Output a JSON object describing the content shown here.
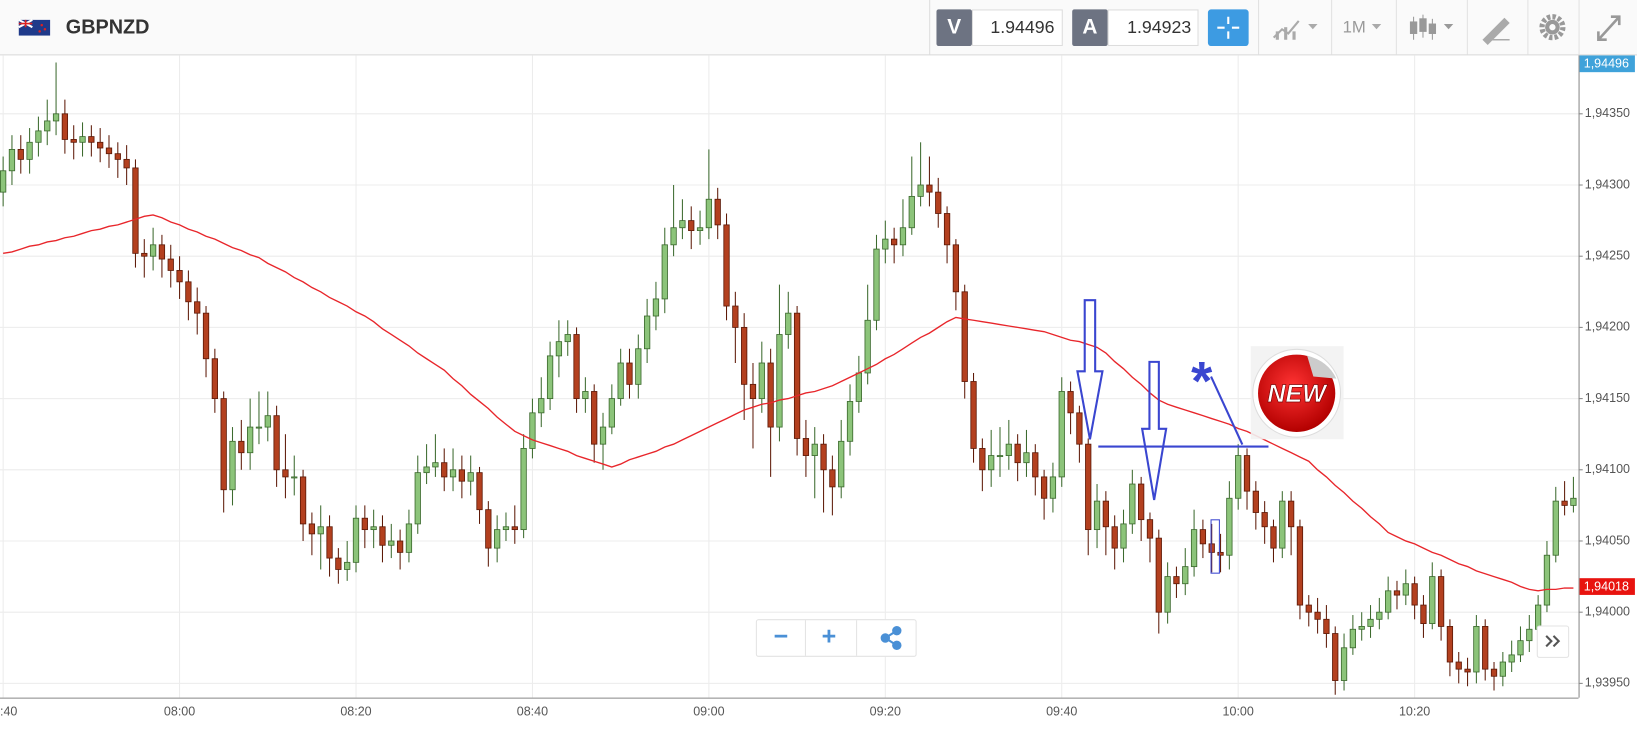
{
  "toolbar": {
    "symbol": "GBPNZD",
    "sell_label": "V",
    "sell_price": "1.94496",
    "buy_label": "A",
    "buy_price": "1.94923",
    "timeframe": "1M"
  },
  "controls": {
    "zoom_out": "−",
    "zoom_in": "+"
  },
  "annotations": {
    "sticker": "NEW",
    "asterisk": "*"
  },
  "chart_data": {
    "type": "candlestick",
    "up_color": "#8cc47a",
    "down_color": "#b3401f",
    "grid": true,
    "ylim": [
      1.9394,
      1.94391
    ],
    "yticks": [
      {
        "value": 1.9395,
        "label": "1,93950"
      },
      {
        "value": 1.94,
        "label": "1,94000"
      },
      {
        "value": 1.9405,
        "label": "1,94050"
      },
      {
        "value": 1.941,
        "label": "1,94100"
      },
      {
        "value": 1.9415,
        "label": "1,94150"
      },
      {
        "value": 1.942,
        "label": "1,94200"
      },
      {
        "value": 1.9425,
        "label": "1,94250"
      },
      {
        "value": 1.943,
        "label": "1,94300"
      },
      {
        "value": 1.9435,
        "label": "1,94350"
      }
    ],
    "price_tags": [
      {
        "value": 1.94496,
        "label": "1,94496",
        "color": "#3fa2da"
      },
      {
        "value": 1.94018,
        "label": "1,94018",
        "color": "#e8130f"
      }
    ],
    "categories": [
      ":40",
      null,
      null,
      null,
      null,
      null,
      null,
      null,
      null,
      null,
      null,
      null,
      null,
      null,
      null,
      null,
      null,
      null,
      null,
      null,
      "08:00",
      null,
      null,
      null,
      null,
      null,
      null,
      null,
      null,
      null,
      null,
      null,
      null,
      null,
      null,
      null,
      null,
      null,
      null,
      null,
      "08:20",
      null,
      null,
      null,
      null,
      null,
      null,
      null,
      null,
      null,
      null,
      null,
      null,
      null,
      null,
      null,
      null,
      null,
      null,
      null,
      "08:40",
      null,
      null,
      null,
      null,
      null,
      null,
      null,
      null,
      null,
      null,
      null,
      null,
      null,
      null,
      null,
      null,
      null,
      null,
      null,
      "09:00",
      null,
      null,
      null,
      null,
      null,
      null,
      null,
      null,
      null,
      null,
      null,
      null,
      null,
      null,
      null,
      null,
      null,
      null,
      null,
      "09:20",
      null,
      null,
      null,
      null,
      null,
      null,
      null,
      null,
      null,
      null,
      null,
      null,
      null,
      null,
      null,
      null,
      null,
      null,
      null,
      "09:40",
      null,
      null,
      null,
      null,
      null,
      null,
      null,
      null,
      null,
      null,
      null,
      null,
      null,
      null,
      null,
      null,
      null,
      null,
      null,
      "10:00",
      null,
      null,
      null,
      null,
      null,
      null,
      null,
      null,
      null,
      null,
      null,
      null,
      null,
      null,
      null,
      null,
      null,
      null,
      null,
      "10:20",
      null,
      null,
      null,
      null,
      null,
      null,
      null,
      null,
      null,
      null,
      null,
      null,
      null,
      null,
      null,
      null,
      null,
      null
    ],
    "open": [
      1.94295,
      1.9431,
      1.94325,
      1.94318,
      1.9433,
      1.94338,
      1.94345,
      1.9435,
      1.94332,
      1.9433,
      1.94334,
      1.9433,
      1.94326,
      1.94322,
      1.94318,
      1.94312,
      1.94252,
      1.9425,
      1.94258,
      1.94248,
      1.9424,
      1.94232,
      1.94218,
      1.9421,
      1.94178,
      1.9415,
      1.94086,
      1.9412,
      1.94112,
      1.9413,
      1.9413,
      1.94138,
      1.941,
      1.94095,
      1.94095,
      1.94062,
      1.94055,
      1.9406,
      1.94038,
      1.9403,
      1.94035,
      1.94066,
      1.94058,
      1.9406,
      1.94047,
      1.9405,
      1.94042,
      1.94062,
      1.94098,
      1.94102,
      1.94105,
      1.94095,
      1.941,
      1.94092,
      1.94098,
      1.94072,
      1.94045,
      1.94058,
      1.9406,
      1.94058,
      1.94115,
      1.9414,
      1.9415,
      1.9418,
      1.9419,
      1.94195,
      1.9415,
      1.94155,
      1.94118,
      1.9413,
      1.9415,
      1.94175,
      1.9416,
      1.94185,
      1.94208,
      1.9422,
      1.94258,
      1.9427,
      1.94275,
      1.94268,
      1.9427,
      1.9429,
      1.94272,
      1.94215,
      1.942,
      1.9416,
      1.9415,
      1.94175,
      1.9413,
      1.94195,
      1.9421,
      1.94122,
      1.9411,
      1.94118,
      1.941,
      1.94088,
      1.9412,
      1.94148,
      1.94168,
      1.94205,
      1.94255,
      1.94262,
      1.94258,
      1.9427,
      1.94292,
      1.943,
      1.94295,
      1.9428,
      1.94258,
      1.94225,
      1.94162,
      1.94115,
      1.941,
      1.9411,
      1.9411,
      1.94118,
      1.94105,
      1.94112,
      1.94095,
      1.9408,
      1.94095,
      1.94155,
      1.9414,
      1.94118,
      1.94058,
      1.94078,
      1.9406,
      1.94045,
      1.94062,
      1.9409,
      1.94065,
      1.94052,
      1.94,
      1.94025,
      1.9402,
      1.94032,
      1.94058,
      1.94048,
      1.94042,
      1.9404,
      1.9408,
      1.9411,
      1.94085,
      1.9407,
      1.9406,
      1.94045,
      1.94078,
      1.9406,
      1.94005,
      1.94,
      1.93995,
      1.93985,
      1.93952,
      1.93975,
      1.93988,
      1.9399,
      1.93995,
      1.94,
      1.94015,
      1.94012,
      1.9402,
      1.94005,
      1.93992,
      1.94025,
      1.9399,
      1.93965,
      1.9396,
      1.93958,
      1.9399,
      1.9396,
      1.93955,
      1.93965,
      1.9397,
      1.9398,
      1.93988,
      1.94005,
      1.9404,
      1.94078,
      1.94075
    ],
    "high": [
      1.9432,
      1.94335,
      1.94335,
      1.9434,
      1.94348,
      1.9436,
      1.94386,
      1.9436,
      1.94342,
      1.94344,
      1.94342,
      1.9434,
      1.94335,
      1.9433,
      1.94328,
      1.94318,
      1.94262,
      1.9427,
      1.94265,
      1.94258,
      1.9425,
      1.9424,
      1.94228,
      1.94215,
      1.94185,
      1.94155,
      1.9413,
      1.94135,
      1.9415,
      1.94155,
      1.94155,
      1.94145,
      1.94125,
      1.9411,
      1.941,
      1.9407,
      1.94075,
      1.94068,
      1.94045,
      1.9405,
      1.94075,
      1.94075,
      1.94072,
      1.94068,
      1.94062,
      1.94058,
      1.94072,
      1.9411,
      1.94118,
      1.94125,
      1.94115,
      1.94115,
      1.9411,
      1.9411,
      1.94102,
      1.94078,
      1.94068,
      1.9407,
      1.94075,
      1.94125,
      1.9415,
      1.94165,
      1.9419,
      1.94205,
      1.94205,
      1.942,
      1.94165,
      1.9416,
      1.9414,
      1.9416,
      1.94185,
      1.94185,
      1.94195,
      1.9422,
      1.94232,
      1.9427,
      1.943,
      1.9429,
      1.94285,
      1.94282,
      1.94325,
      1.94298,
      1.9428,
      1.94225,
      1.9421,
      1.94175,
      1.9419,
      1.94185,
      1.9423,
      1.94225,
      1.94215,
      1.94135,
      1.9413,
      1.94125,
      1.9411,
      1.94135,
      1.9416,
      1.9418,
      1.9423,
      1.94265,
      1.94275,
      1.9427,
      1.9429,
      1.9432,
      1.9433,
      1.9432,
      1.94305,
      1.94285,
      1.94262,
      1.9423,
      1.94168,
      1.94122,
      1.94128,
      1.9413,
      1.94135,
      1.94125,
      1.94128,
      1.94118,
      1.941,
      1.94105,
      1.94165,
      1.94162,
      1.94145,
      1.94122,
      1.9409,
      1.94085,
      1.94068,
      1.94072,
      1.941,
      1.94095,
      1.9407,
      1.94058,
      1.94035,
      1.94032,
      1.94045,
      1.94072,
      1.94065,
      1.94062,
      1.94055,
      1.94092,
      1.94118,
      1.94115,
      1.94092,
      1.94078,
      1.94065,
      1.94085,
      1.94085,
      1.94065,
      1.94012,
      1.9401,
      1.94005,
      1.9399,
      1.93985,
      1.93998,
      1.94,
      1.94005,
      1.9401,
      1.94025,
      1.94022,
      1.9403,
      1.94025,
      1.94012,
      1.94035,
      1.9403,
      1.93995,
      1.93972,
      1.93968,
      1.93998,
      1.93995,
      1.93965,
      1.93972,
      1.9398,
      1.9399,
      1.93998,
      1.94012,
      1.9405,
      1.94088,
      1.94092,
      1.94095
    ],
    "low": [
      1.94285,
      1.943,
      1.94308,
      1.94308,
      1.9432,
      1.94328,
      1.94335,
      1.94322,
      1.94318,
      1.9432,
      1.9432,
      1.94316,
      1.94312,
      1.94305,
      1.943,
      1.94242,
      1.94235,
      1.9424,
      1.94235,
      1.94228,
      1.9422,
      1.94205,
      1.94195,
      1.94165,
      1.9414,
      1.9407,
      1.94075,
      1.941,
      1.941,
      1.94118,
      1.9412,
      1.94088,
      1.9408,
      1.94082,
      1.9405,
      1.9404,
      1.9403,
      1.94025,
      1.9402,
      1.94022,
      1.94028,
      1.94045,
      1.94045,
      1.94035,
      1.94038,
      1.9403,
      1.94035,
      1.94055,
      1.9409,
      1.94095,
      1.94085,
      1.94085,
      1.9408,
      1.94082,
      1.94062,
      1.94032,
      1.94035,
      1.9405,
      1.94048,
      1.94052,
      1.94108,
      1.9413,
      1.94142,
      1.94165,
      1.9418,
      1.9414,
      1.9414,
      1.94105,
      1.941,
      1.94125,
      1.94145,
      1.9415,
      1.9415,
      1.94175,
      1.94198,
      1.9421,
      1.9425,
      1.94262,
      1.94255,
      1.94258,
      1.94262,
      1.94262,
      1.94205,
      1.94175,
      1.94135,
      1.94115,
      1.9414,
      1.94095,
      1.9412,
      1.94185,
      1.9411,
      1.94095,
      1.9408,
      1.9407,
      1.94068,
      1.9408,
      1.9411,
      1.9414,
      1.9416,
      1.94198,
      1.94245,
      1.94245,
      1.9425,
      1.94265,
      1.94285,
      1.94285,
      1.9427,
      1.94245,
      1.94212,
      1.9415,
      1.94105,
      1.94085,
      1.94088,
      1.94095,
      1.941,
      1.94092,
      1.94095,
      1.94082,
      1.94065,
      1.9407,
      1.94088,
      1.94125,
      1.94105,
      1.9404,
      1.94045,
      1.9404,
      1.9403,
      1.94035,
      1.94055,
      1.9405,
      1.94035,
      1.93985,
      1.93992,
      1.9401,
      1.94012,
      1.94025,
      1.94038,
      1.94028,
      1.94028,
      1.9403,
      1.94072,
      1.94072,
      1.94058,
      1.94048,
      1.94035,
      1.94038,
      1.9404,
      1.93995,
      1.9399,
      1.93985,
      1.93975,
      1.93942,
      1.93945,
      1.9397,
      1.9398,
      1.93982,
      1.93988,
      1.93995,
      1.94002,
      1.94005,
      1.93995,
      1.93982,
      1.93988,
      1.9398,
      1.93955,
      1.9395,
      1.93948,
      1.9395,
      1.93952,
      1.93945,
      1.93948,
      1.93958,
      1.93965,
      1.93972,
      1.93982,
      1.94,
      1.94035,
      1.94068,
      1.9407
    ],
    "close": [
      1.9431,
      1.94325,
      1.94318,
      1.9433,
      1.94338,
      1.94345,
      1.9435,
      1.94332,
      1.9433,
      1.94334,
      1.9433,
      1.94326,
      1.94322,
      1.94318,
      1.94312,
      1.94252,
      1.9425,
      1.94258,
      1.94248,
      1.9424,
      1.94232,
      1.94218,
      1.9421,
      1.94178,
      1.9415,
      1.94086,
      1.9412,
      1.94112,
      1.9413,
      1.9413,
      1.94138,
      1.941,
      1.94095,
      1.94095,
      1.94062,
      1.94055,
      1.9406,
      1.94038,
      1.9403,
      1.94035,
      1.94066,
      1.94058,
      1.9406,
      1.94047,
      1.9405,
      1.94042,
      1.94062,
      1.94098,
      1.94102,
      1.94105,
      1.94095,
      1.941,
      1.94092,
      1.94098,
      1.94072,
      1.94045,
      1.94058,
      1.9406,
      1.94058,
      1.94115,
      1.9414,
      1.9415,
      1.9418,
      1.9419,
      1.94195,
      1.9415,
      1.94155,
      1.94118,
      1.9413,
      1.9415,
      1.94175,
      1.9416,
      1.94185,
      1.94208,
      1.9422,
      1.94258,
      1.9427,
      1.94275,
      1.94268,
      1.9427,
      1.9429,
      1.94272,
      1.94215,
      1.942,
      1.9416,
      1.9415,
      1.94175,
      1.9413,
      1.94195,
      1.9421,
      1.94122,
      1.9411,
      1.94118,
      1.941,
      1.94088,
      1.9412,
      1.94148,
      1.94168,
      1.94205,
      1.94255,
      1.94262,
      1.94258,
      1.9427,
      1.94292,
      1.943,
      1.94295,
      1.9428,
      1.94258,
      1.94225,
      1.94162,
      1.94115,
      1.941,
      1.9411,
      1.9411,
      1.94118,
      1.94105,
      1.94112,
      1.94095,
      1.9408,
      1.94095,
      1.94155,
      1.9414,
      1.94118,
      1.94058,
      1.94078,
      1.9406,
      1.94045,
      1.94062,
      1.9409,
      1.94065,
      1.94052,
      1.94,
      1.94025,
      1.9402,
      1.94032,
      1.94058,
      1.94048,
      1.94042,
      1.9404,
      1.9408,
      1.9411,
      1.94085,
      1.9407,
      1.9406,
      1.94045,
      1.94078,
      1.9406,
      1.94005,
      1.94,
      1.93995,
      1.93985,
      1.93952,
      1.93975,
      1.93988,
      1.9399,
      1.93995,
      1.94,
      1.94015,
      1.94012,
      1.9402,
      1.94005,
      1.93992,
      1.94025,
      1.9399,
      1.93965,
      1.9396,
      1.93958,
      1.9399,
      1.9396,
      1.93955,
      1.93965,
      1.9397,
      1.9398,
      1.93988,
      1.94005,
      1.9404,
      1.94078,
      1.94075,
      1.9408
    ],
    "moving_average": {
      "color": "#e8262b",
      "values": [
        1.94252,
        1.94253,
        1.94255,
        1.94257,
        1.94258,
        1.9426,
        1.94261,
        1.94263,
        1.94264,
        1.94266,
        1.94268,
        1.94269,
        1.94271,
        1.94272,
        1.94274,
        1.94276,
        1.94278,
        1.94279,
        1.94277,
        1.94274,
        1.94272,
        1.94269,
        1.94267,
        1.94264,
        1.94262,
        1.94259,
        1.94256,
        1.94254,
        1.94251,
        1.94249,
        1.94245,
        1.94242,
        1.94239,
        1.94235,
        1.94232,
        1.94228,
        1.94225,
        1.94221,
        1.94218,
        1.94215,
        1.94211,
        1.94208,
        1.94204,
        1.94199,
        1.94195,
        1.94191,
        1.94187,
        1.94182,
        1.94178,
        1.94174,
        1.9417,
        1.94164,
        1.94159,
        1.94153,
        1.94148,
        1.94143,
        1.94137,
        1.94132,
        1.94127,
        1.94124,
        1.94121,
        1.94119,
        1.94117,
        1.94115,
        1.94113,
        1.9411,
        1.94108,
        1.94106,
        1.94104,
        1.94102,
        1.94104,
        1.94107,
        1.94109,
        1.94111,
        1.94113,
        1.94116,
        1.94118,
        1.94121,
        1.94124,
        1.94127,
        1.9413,
        1.94133,
        1.94136,
        1.94139,
        1.94142,
        1.94144,
        1.94146,
        1.94147,
        1.94149,
        1.9415,
        1.94152,
        1.94154,
        1.94155,
        1.94157,
        1.94159,
        1.94162,
        1.94165,
        1.94168,
        1.94171,
        1.94174,
        1.94178,
        1.94181,
        1.94185,
        1.94189,
        1.94193,
        1.94196,
        1.942,
        1.94204,
        1.94207,
        1.94206,
        1.94205,
        1.94204,
        1.94203,
        1.94202,
        1.94201,
        1.942,
        1.94199,
        1.94198,
        1.94197,
        1.94195,
        1.94193,
        1.94191,
        1.9419,
        1.94188,
        1.94186,
        1.94182,
        1.94176,
        1.94171,
        1.94165,
        1.9416,
        1.94154,
        1.94149,
        1.94146,
        1.94144,
        1.94142,
        1.9414,
        1.94138,
        1.94136,
        1.94134,
        1.94132,
        1.94129,
        1.94127,
        1.94124,
        1.94121,
        1.94118,
        1.94115,
        1.94112,
        1.94109,
        1.94106,
        1.941,
        1.94095,
        1.94089,
        1.94084,
        1.94078,
        1.94073,
        1.94067,
        1.94062,
        1.94056,
        1.94053,
        1.9405,
        1.94048,
        1.94045,
        1.94042,
        1.9404,
        1.94037,
        1.94034,
        1.94032,
        1.94029,
        1.94027,
        1.94025,
        1.94023,
        1.94021,
        1.94018,
        1.94016,
        1.94015,
        1.94016,
        1.94016,
        1.94017,
        1.94017
      ]
    }
  }
}
